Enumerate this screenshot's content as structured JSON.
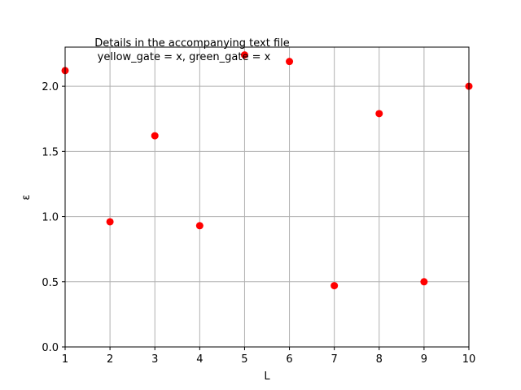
{
  "chart_data": {
    "type": "scatter",
    "title": "",
    "xlabel": "L",
    "ylabel": "ε",
    "xlim": [
      1,
      10
    ],
    "ylim": [
      0.0,
      2.3
    ],
    "x_ticks": [
      "1",
      "2",
      "3",
      "4",
      "5",
      "6",
      "7",
      "8",
      "9",
      "10"
    ],
    "y_ticks": [
      "0.0",
      "0.5",
      "1.0",
      "1.5",
      "2.0"
    ],
    "grid": true,
    "annotation": {
      "line1": "Details in the accompanying text file",
      "line2": "yellow_gate = x, green_gate = x"
    },
    "marker_color": "#ff0000",
    "x": [
      1,
      2,
      3,
      4,
      5,
      6,
      7,
      8,
      9,
      10
    ],
    "y": [
      2.12,
      0.96,
      1.62,
      0.93,
      2.24,
      2.19,
      0.47,
      1.79,
      0.5,
      2.0
    ]
  }
}
